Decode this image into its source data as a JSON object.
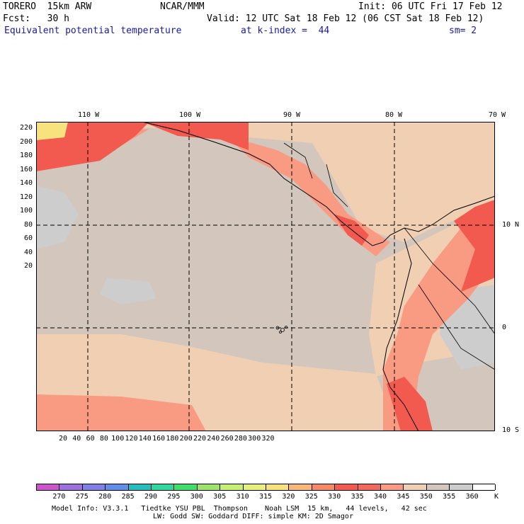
{
  "header": {
    "model": "TORERO  15km ARW",
    "org": "NCAR/MMM",
    "init": "Init: 06 UTC Fri 17 Feb 12",
    "fcst": "Fcst:   30 h",
    "valid": "Valid: 12 UTC Sat 18 Feb 12 (06 CST Sat 18 Feb 12)",
    "field": "Equivalent potential temperature",
    "level": "at k-index =  44",
    "smoothing": "sm= 2"
  },
  "map": {
    "lon_labels": [
      "110 W",
      "100 W",
      "90 W",
      "80 W",
      "70 W"
    ],
    "lat_labels": [
      "10 N",
      "0",
      "10 S"
    ],
    "y_ticks": [
      "220",
      "200",
      "180",
      "160",
      "140",
      "120",
      "100",
      "80",
      "60",
      "40",
      "20"
    ],
    "x_ticks": [
      "20",
      "40",
      "60",
      "80",
      "100",
      "120",
      "140",
      "160",
      "180",
      "200",
      "220",
      "240",
      "260",
      "280",
      "300",
      "320"
    ]
  },
  "colorbar": {
    "labels": [
      "270",
      "275",
      "280",
      "285",
      "290",
      "295",
      "300",
      "305",
      "310",
      "315",
      "320",
      "325",
      "330",
      "335",
      "340",
      "345",
      "350",
      "355",
      "360"
    ],
    "unit": "K",
    "colors": [
      "#cc55cc",
      "#9f6fdc",
      "#8080e8",
      "#5f8fe8",
      "#27bdbd",
      "#2fd6a0",
      "#45dc6e",
      "#9fe46a",
      "#c8ef72",
      "#e6f07a",
      "#f8e27e",
      "#f8b87a",
      "#f68a66",
      "#f25a50",
      "#f26a5e",
      "#f99a82",
      "#f1cfb3",
      "#d2c6bd",
      "#cdcdcd",
      "#ffffff"
    ]
  },
  "footer": {
    "line1": "Model Info: V3.3.1   Tiedtke YSU PBL  Thompson    Noah LSM  15 km,   44 levels,   42 sec",
    "line2": "LW: Godd SW: Goddard DIFF: simple KM: 2D Smagor"
  }
}
